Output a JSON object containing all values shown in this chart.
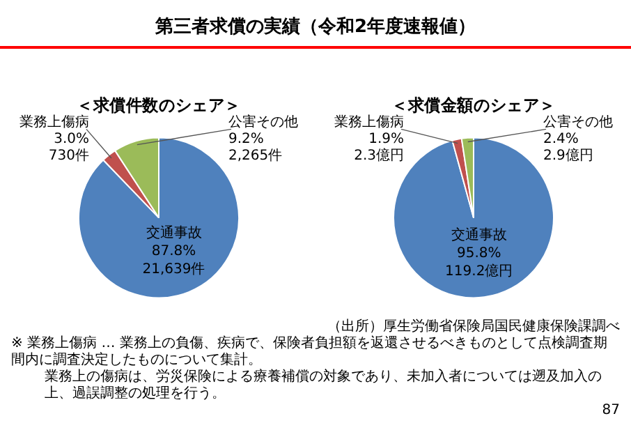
{
  "chart_data": [
    {
      "type": "pie",
      "title": "第三者求償の実績（令和2年度速報値）",
      "subtitle": "＜求償件数のシェア＞",
      "categories": [
        "交通事故",
        "業務上傷病",
        "公害その他"
      ],
      "values": [
        87.8,
        3.0,
        9.2
      ],
      "colors": [
        "#4f81bd",
        "#c0504d",
        "#9bbb59"
      ],
      "value_labels": [
        "87.8%\n21,639件",
        "3.0%\n730件",
        "9.2%\n2,265件"
      ]
    },
    {
      "type": "pie",
      "title": "＜求償金額のシェア＞",
      "categories": [
        "交通事故",
        "業務上傷病",
        "公害その他"
      ],
      "values": [
        95.8,
        1.9,
        2.4
      ],
      "colors": [
        "#4f81bd",
        "#c0504d",
        "#9bbb59"
      ],
      "value_labels": [
        "95.8%\n119.2億円",
        "1.9%\n2.3億円",
        "2.4%\n2.9億円"
      ],
      "annotations": [
        "（出所）厚生労働省保険局国民健康保険課調べ",
        "※ 業務上傷病 … 業務上の負傷、疾病で、保険者負担額を返還させるべきものとして点検調査期間内に調査決定したものについて集計。",
        "業務上の傷病は、労災保険による療養補償の対象であり、未加入者については遡及加入の上、過誤調整の処理を行う。",
        "87"
      ]
    }
  ]
}
